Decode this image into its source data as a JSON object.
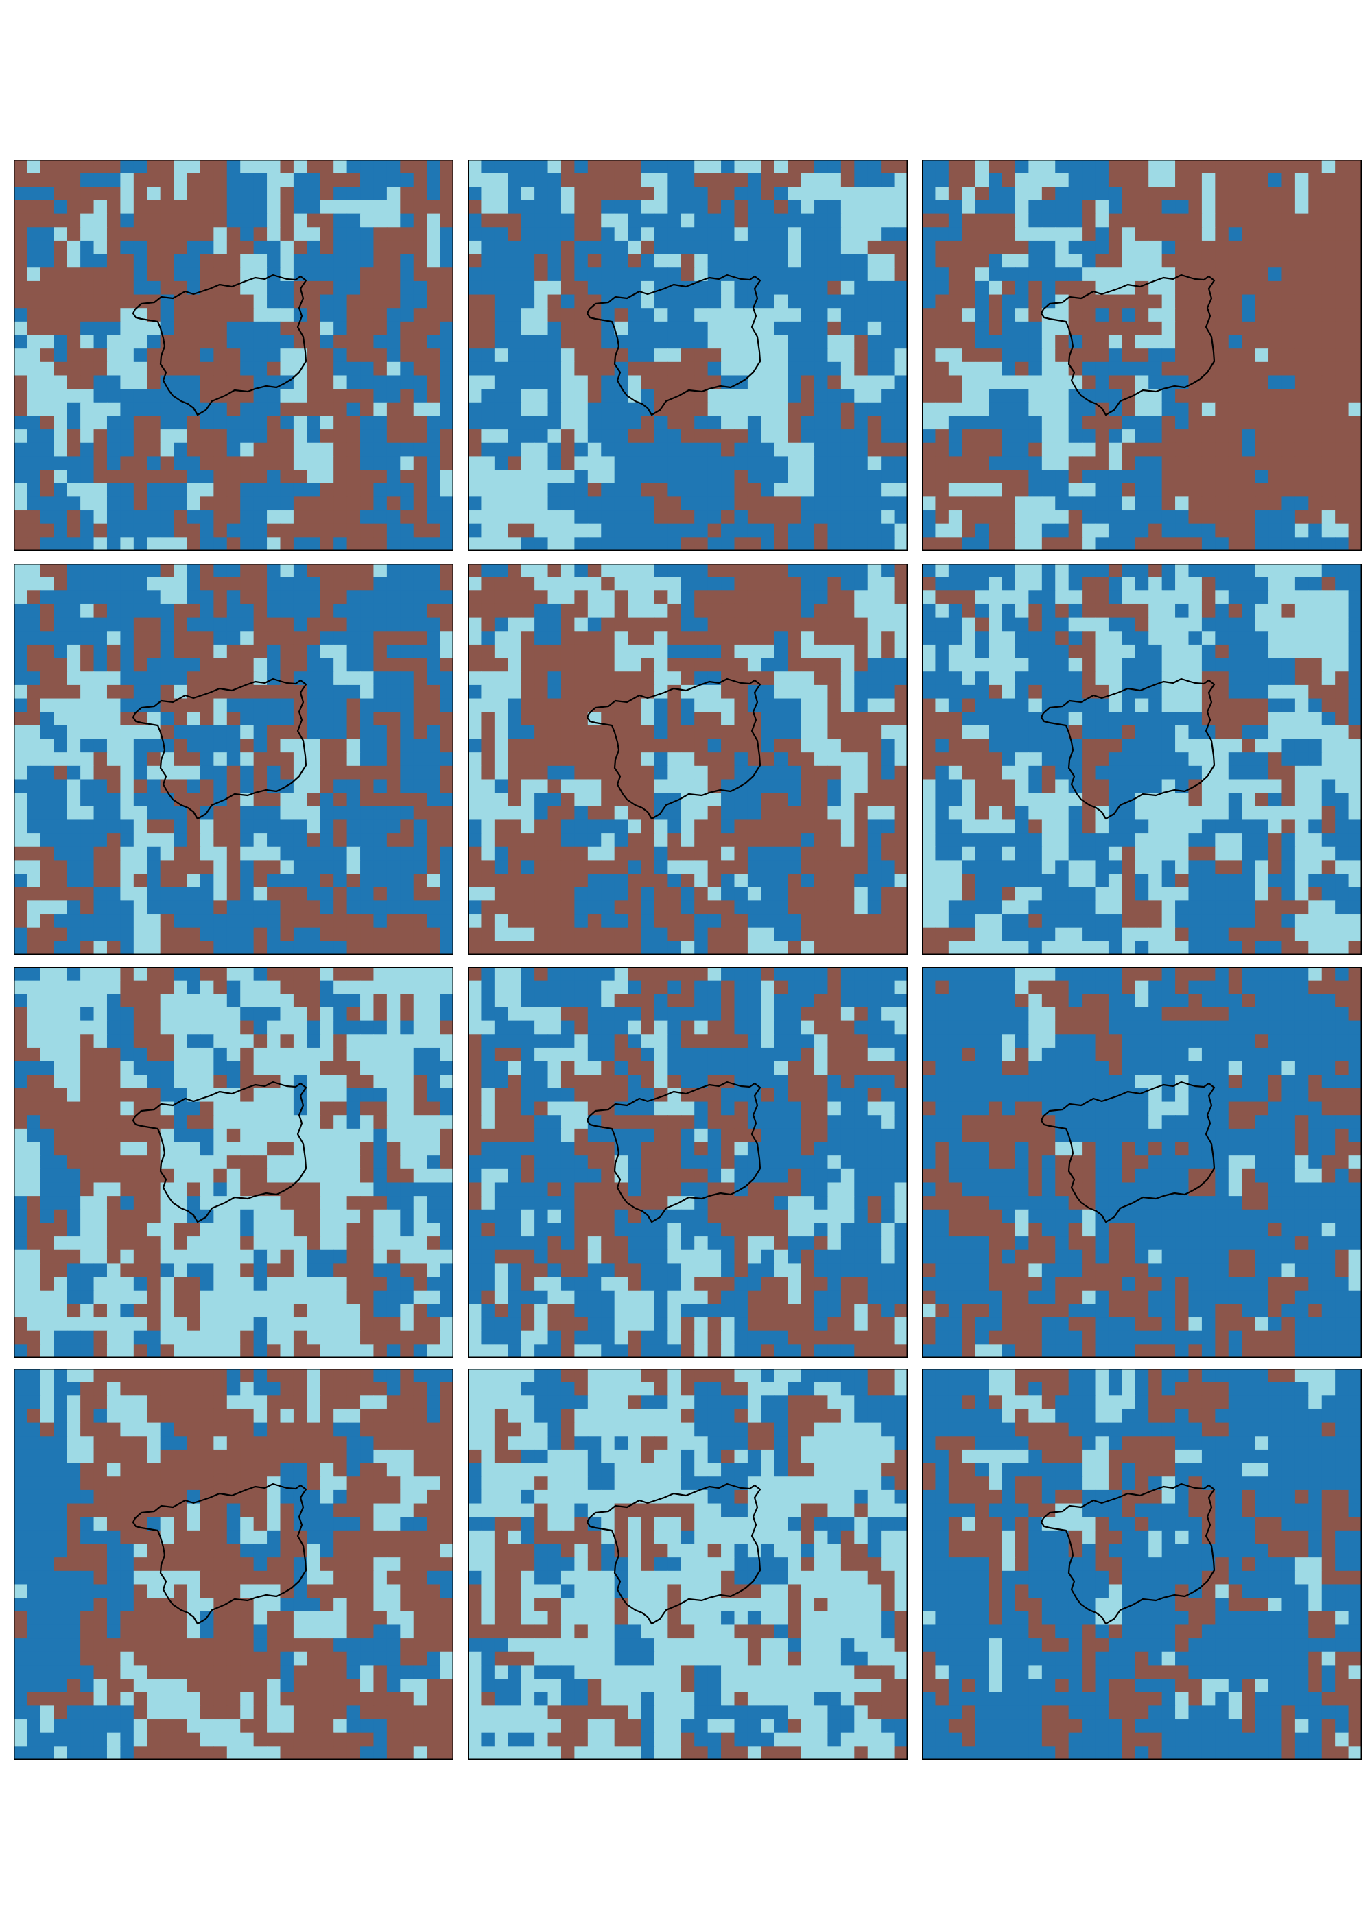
{
  "figure": {
    "layout": {
      "rows": 4,
      "columns": 3
    },
    "categories": [
      {
        "name": "brown",
        "color": "#8C564B"
      },
      {
        "name": "blue",
        "color": "#1F77B4"
      },
      {
        "name": "light-blue",
        "color": "#9EDAE5"
      }
    ],
    "panels": [
      {
        "dominant": "brown",
        "secondary": "blue",
        "tertiary": "light-blue",
        "pattern": "mixed"
      },
      {
        "dominant": "blue",
        "secondary": "light-blue",
        "tertiary": "brown",
        "pattern": "brown-west-blue-south"
      },
      {
        "dominant": "brown",
        "secondary": "blue",
        "tertiary": "light-blue",
        "pattern": "brown-east"
      },
      {
        "dominant": "blue",
        "secondary": "brown",
        "tertiary": "light-blue",
        "pattern": "mixed"
      },
      {
        "dominant": "brown",
        "secondary": "light-blue",
        "tertiary": "blue",
        "pattern": "brown-large"
      },
      {
        "dominant": "blue",
        "secondary": "light-blue",
        "tertiary": "brown",
        "pattern": "light-southwest"
      },
      {
        "dominant": "light-blue",
        "secondary": "brown",
        "tertiary": "blue",
        "pattern": "light-large"
      },
      {
        "dominant": "blue",
        "secondary": "brown",
        "tertiary": "light-blue",
        "pattern": "mixed"
      },
      {
        "dominant": "blue",
        "secondary": "brown",
        "tertiary": "light-blue",
        "pattern": "blue-heavy"
      },
      {
        "dominant": "brown",
        "secondary": "blue",
        "tertiary": "light-blue",
        "pattern": "blue-west-band"
      },
      {
        "dominant": "light-blue",
        "secondary": "blue",
        "tertiary": "brown",
        "pattern": "light-large"
      },
      {
        "dominant": "blue",
        "secondary": "brown",
        "tertiary": "light-blue",
        "pattern": "blue-heavy"
      }
    ],
    "boundary": {
      "shape": "region-outline",
      "color": "#000000",
      "shown_in_every_panel": true
    }
  }
}
